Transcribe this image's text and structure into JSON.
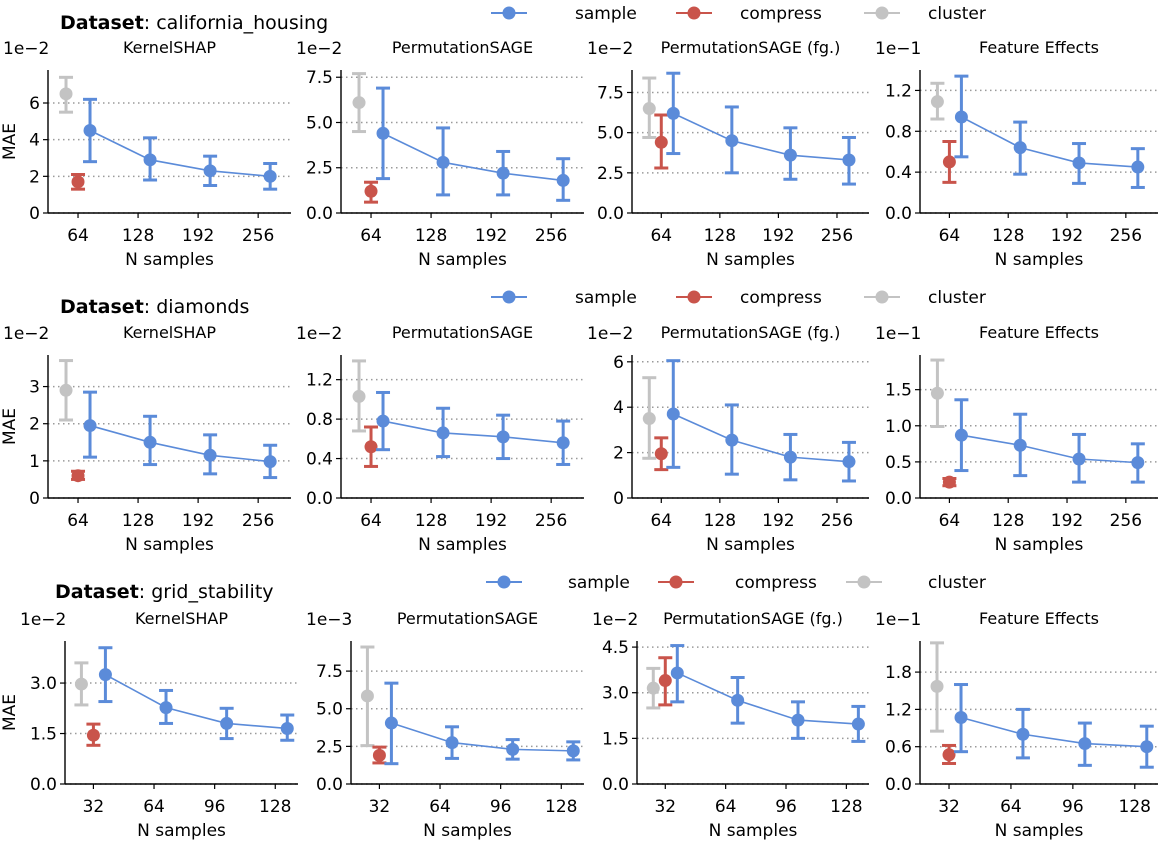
{
  "legend": [
    {
      "name": "sample",
      "color": "#5b8bd9"
    },
    {
      "name": "compress",
      "color": "#c9544b"
    },
    {
      "name": "cluster",
      "color": "#c3c3c3"
    }
  ],
  "dataset_label": "Dataset",
  "datasets": [
    "california_housing",
    "diamonds",
    "grid_stability"
  ],
  "x_label": "N samples",
  "y_label": "MAE",
  "chart_data": [
    {
      "type": "line",
      "dataset": "california_housing",
      "title": "KernelSHAP",
      "multiplier": "1e−2",
      "xlim": [
        32,
        291
      ],
      "ylim": [
        0,
        7.8
      ],
      "xticks": [
        64,
        128,
        192,
        256
      ],
      "yticks": [
        0,
        2,
        4,
        6
      ],
      "ytick_labels": [
        "0",
        "2",
        "4",
        "6"
      ],
      "grid": true,
      "sample": {
        "x": [
          64,
          128,
          192,
          256
        ],
        "y": [
          4.5,
          2.9,
          2.3,
          2.0
        ],
        "lo": [
          2.8,
          1.8,
          1.5,
          1.3
        ],
        "hi": [
          6.2,
          4.1,
          3.1,
          2.7
        ]
      },
      "compress": {
        "x": [
          64
        ],
        "y": [
          1.7
        ],
        "lo": [
          1.3
        ],
        "hi": [
          2.1
        ]
      },
      "cluster": {
        "x": [
          64
        ],
        "y": [
          6.5
        ],
        "lo": [
          5.5
        ],
        "hi": [
          7.4
        ]
      }
    },
    {
      "type": "line",
      "dataset": "california_housing",
      "title": "PermutationSAGE",
      "multiplier": "1e−2",
      "xlim": [
        32,
        291
      ],
      "ylim": [
        0,
        7.9
      ],
      "xticks": [
        64,
        128,
        192,
        256
      ],
      "yticks": [
        0,
        2.5,
        5,
        7.5
      ],
      "ytick_labels": [
        "0.0",
        "2.5",
        "5.0",
        "7.5"
      ],
      "grid": true,
      "sample": {
        "x": [
          64,
          128,
          192,
          256
        ],
        "y": [
          4.4,
          2.8,
          2.2,
          1.8
        ],
        "lo": [
          1.9,
          1.0,
          1.0,
          0.7
        ],
        "hi": [
          6.9,
          4.7,
          3.4,
          3.0
        ]
      },
      "compress": {
        "x": [
          64
        ],
        "y": [
          1.2
        ],
        "lo": [
          0.6
        ],
        "hi": [
          1.7
        ]
      },
      "cluster": {
        "x": [
          64
        ],
        "y": [
          6.1
        ],
        "lo": [
          4.5
        ],
        "hi": [
          7.7
        ]
      }
    },
    {
      "type": "line",
      "dataset": "california_housing",
      "title": "PermutationSAGE (fg.)",
      "multiplier": "1e−2",
      "xlim": [
        32,
        291
      ],
      "ylim": [
        0,
        8.9
      ],
      "xticks": [
        64,
        128,
        192,
        256
      ],
      "yticks": [
        0,
        2.5,
        5,
        7.5
      ],
      "ytick_labels": [
        "0.0",
        "2.5",
        "5.0",
        "7.5"
      ],
      "grid": true,
      "sample": {
        "x": [
          64,
          128,
          192,
          256
        ],
        "y": [
          6.2,
          4.5,
          3.6,
          3.3
        ],
        "lo": [
          3.7,
          2.5,
          2.1,
          1.8
        ],
        "hi": [
          8.7,
          6.6,
          5.3,
          4.7
        ]
      },
      "compress": {
        "x": [
          64
        ],
        "y": [
          4.4
        ],
        "lo": [
          2.8
        ],
        "hi": [
          6.1
        ]
      },
      "cluster": {
        "x": [
          64
        ],
        "y": [
          6.5
        ],
        "lo": [
          4.7
        ],
        "hi": [
          8.4
        ]
      }
    },
    {
      "type": "line",
      "dataset": "california_housing",
      "title": "Feature Effects",
      "multiplier": "1e−1",
      "xlim": [
        32,
        291
      ],
      "ylim": [
        0,
        1.4
      ],
      "xticks": [
        64,
        128,
        192,
        256
      ],
      "yticks": [
        0,
        0.4,
        0.8,
        1.2
      ],
      "ytick_labels": [
        "0.0",
        "0.4",
        "0.8",
        "1.2"
      ],
      "grid": true,
      "sample": {
        "x": [
          64,
          128,
          192,
          256
        ],
        "y": [
          0.94,
          0.64,
          0.49,
          0.45
        ],
        "lo": [
          0.55,
          0.38,
          0.29,
          0.25
        ],
        "hi": [
          1.34,
          0.89,
          0.68,
          0.63
        ]
      },
      "compress": {
        "x": [
          64
        ],
        "y": [
          0.5
        ],
        "lo": [
          0.3
        ],
        "hi": [
          0.7
        ]
      },
      "cluster": {
        "x": [
          64
        ],
        "y": [
          1.09
        ],
        "lo": [
          0.92
        ],
        "hi": [
          1.27
        ]
      }
    },
    {
      "type": "line",
      "dataset": "diamonds",
      "title": "KernelSHAP",
      "multiplier": "1e−2",
      "xlim": [
        32,
        291
      ],
      "ylim": [
        0,
        3.85
      ],
      "xticks": [
        64,
        128,
        192,
        256
      ],
      "yticks": [
        0,
        1,
        2,
        3
      ],
      "ytick_labels": [
        "0",
        "1",
        "2",
        "3"
      ],
      "grid": true,
      "sample": {
        "x": [
          64,
          128,
          192,
          256
        ],
        "y": [
          1.95,
          1.5,
          1.15,
          0.98
        ],
        "lo": [
          1.1,
          0.9,
          0.65,
          0.55
        ],
        "hi": [
          2.85,
          2.2,
          1.7,
          1.42
        ]
      },
      "compress": {
        "x": [
          64
        ],
        "y": [
          0.6
        ],
        "lo": [
          0.5
        ],
        "hi": [
          0.72
        ]
      },
      "cluster": {
        "x": [
          64
        ],
        "y": [
          2.9
        ],
        "lo": [
          2.1
        ],
        "hi": [
          3.7
        ]
      }
    },
    {
      "type": "line",
      "dataset": "diamonds",
      "title": "PermutationSAGE",
      "multiplier": "1e−2",
      "xlim": [
        32,
        291
      ],
      "ylim": [
        0,
        1.45
      ],
      "xticks": [
        64,
        128,
        192,
        256
      ],
      "yticks": [
        0,
        0.4,
        0.8,
        1.2
      ],
      "ytick_labels": [
        "0.0",
        "0.4",
        "0.8",
        "1.2"
      ],
      "grid": true,
      "sample": {
        "x": [
          64,
          128,
          192,
          256
        ],
        "y": [
          0.78,
          0.66,
          0.62,
          0.56
        ],
        "lo": [
          0.49,
          0.42,
          0.4,
          0.34
        ],
        "hi": [
          1.07,
          0.91,
          0.84,
          0.78
        ]
      },
      "compress": {
        "x": [
          64
        ],
        "y": [
          0.52
        ],
        "lo": [
          0.32
        ],
        "hi": [
          0.72
        ]
      },
      "cluster": {
        "x": [
          64
        ],
        "y": [
          1.03
        ],
        "lo": [
          0.68
        ],
        "hi": [
          1.39
        ]
      }
    },
    {
      "type": "line",
      "dataset": "diamonds",
      "title": "PermutationSAGE (fg.)",
      "multiplier": "1e−2",
      "xlim": [
        32,
        291
      ],
      "ylim": [
        0,
        6.3
      ],
      "xticks": [
        64,
        128,
        192,
        256
      ],
      "yticks": [
        0,
        2,
        4,
        6
      ],
      "ytick_labels": [
        "0",
        "2",
        "4",
        "6"
      ],
      "grid": true,
      "sample": {
        "x": [
          64,
          128,
          192,
          256
        ],
        "y": [
          3.7,
          2.55,
          1.8,
          1.6
        ],
        "lo": [
          1.35,
          1.05,
          0.8,
          0.75
        ],
        "hi": [
          6.05,
          4.1,
          2.8,
          2.45
        ]
      },
      "compress": {
        "x": [
          64
        ],
        "y": [
          1.95
        ],
        "lo": [
          1.25
        ],
        "hi": [
          2.65
        ]
      },
      "cluster": {
        "x": [
          64
        ],
        "y": [
          3.5
        ],
        "lo": [
          1.75
        ],
        "hi": [
          5.3
        ]
      }
    },
    {
      "type": "line",
      "dataset": "diamonds",
      "title": "Feature Effects",
      "multiplier": "1e−1",
      "xlim": [
        32,
        291
      ],
      "ylim": [
        0,
        1.98
      ],
      "xticks": [
        64,
        128,
        192,
        256
      ],
      "yticks": [
        0,
        0.5,
        1.0,
        1.5
      ],
      "ytick_labels": [
        "0.0",
        "0.5",
        "1.0",
        "1.5"
      ],
      "grid": true,
      "sample": {
        "x": [
          64,
          128,
          192,
          256
        ],
        "y": [
          0.87,
          0.73,
          0.54,
          0.49
        ],
        "lo": [
          0.38,
          0.31,
          0.22,
          0.22
        ],
        "hi": [
          1.36,
          1.16,
          0.88,
          0.75
        ]
      },
      "compress": {
        "x": [
          64
        ],
        "y": [
          0.22
        ],
        "lo": [
          0.17
        ],
        "hi": [
          0.27
        ]
      },
      "cluster": {
        "x": [
          64
        ],
        "y": [
          1.45
        ],
        "lo": [
          0.99
        ],
        "hi": [
          1.91
        ]
      }
    },
    {
      "type": "line",
      "dataset": "grid_stability",
      "title": "KernelSHAP",
      "multiplier": "1e−2",
      "xlim": [
        17,
        140
      ],
      "ylim": [
        0,
        4.25
      ],
      "xticks": [
        32,
        64,
        96,
        128
      ],
      "yticks": [
        0,
        1.5,
        3.0
      ],
      "ytick_labels": [
        "0.0",
        "1.5",
        "3.0"
      ],
      "grid": true,
      "sample": {
        "x": [
          32,
          64,
          96,
          128
        ],
        "y": [
          3.25,
          2.27,
          1.8,
          1.65
        ],
        "lo": [
          2.45,
          1.8,
          1.35,
          1.3
        ],
        "hi": [
          4.05,
          2.78,
          2.25,
          2.05
        ]
      },
      "compress": {
        "x": [
          32
        ],
        "y": [
          1.45
        ],
        "lo": [
          1.15
        ],
        "hi": [
          1.78
        ]
      },
      "cluster": {
        "x": [
          32
        ],
        "y": [
          2.97
        ],
        "lo": [
          2.35
        ],
        "hi": [
          3.6
        ]
      }
    },
    {
      "type": "line",
      "dataset": "grid_stability",
      "title": "PermutationSAGE",
      "multiplier": "1e−3",
      "xlim": [
        17,
        140
      ],
      "ylim": [
        0,
        9.5
      ],
      "xticks": [
        32,
        64,
        96,
        128
      ],
      "yticks": [
        0,
        2.5,
        5,
        7.5
      ],
      "ytick_labels": [
        "0.0",
        "2.5",
        "5.0",
        "7.5"
      ],
      "grid": true,
      "sample": {
        "x": [
          32,
          64,
          96,
          128
        ],
        "y": [
          4.05,
          2.75,
          2.3,
          2.2
        ],
        "lo": [
          1.35,
          1.7,
          1.65,
          1.6
        ],
        "hi": [
          6.7,
          3.8,
          2.95,
          2.8
        ]
      },
      "compress": {
        "x": [
          32
        ],
        "y": [
          1.9
        ],
        "lo": [
          1.4
        ],
        "hi": [
          2.45
        ]
      },
      "cluster": {
        "x": [
          32
        ],
        "y": [
          5.85
        ],
        "lo": [
          2.55
        ],
        "hi": [
          9.1
        ]
      }
    },
    {
      "type": "line",
      "dataset": "grid_stability",
      "title": "PermutationSAGE (fg.)",
      "multiplier": "1e−2",
      "xlim": [
        17,
        140
      ],
      "ylim": [
        0,
        4.7
      ],
      "xticks": [
        32,
        64,
        96,
        128
      ],
      "yticks": [
        0,
        1.5,
        3.0,
        4.5
      ],
      "ytick_labels": [
        "0.0",
        "1.5",
        "3.0",
        "4.5"
      ],
      "grid": true,
      "sample": {
        "x": [
          32,
          64,
          96,
          128
        ],
        "y": [
          3.65,
          2.75,
          2.1,
          1.97
        ],
        "lo": [
          2.7,
          2.0,
          1.5,
          1.4
        ],
        "hi": [
          4.55,
          3.5,
          2.7,
          2.55
        ]
      },
      "compress": {
        "x": [
          32
        ],
        "y": [
          3.4
        ],
        "lo": [
          2.6
        ],
        "hi": [
          4.15
        ]
      },
      "cluster": {
        "x": [
          32
        ],
        "y": [
          3.15
        ],
        "lo": [
          2.5
        ],
        "hi": [
          3.8
        ]
      }
    },
    {
      "type": "line",
      "dataset": "grid_stability",
      "title": "Feature Effects",
      "multiplier": "1e−1",
      "xlim": [
        17,
        140
      ],
      "ylim": [
        0,
        2.3
      ],
      "xticks": [
        32,
        64,
        96,
        128
      ],
      "yticks": [
        0,
        0.6,
        1.2,
        1.8
      ],
      "ytick_labels": [
        "0.0",
        "0.6",
        "1.2",
        "1.8"
      ],
      "grid": true,
      "sample": {
        "x": [
          32,
          64,
          96,
          128
        ],
        "y": [
          1.07,
          0.8,
          0.65,
          0.6
        ],
        "lo": [
          0.52,
          0.42,
          0.3,
          0.27
        ],
        "hi": [
          1.6,
          1.2,
          0.98,
          0.93
        ]
      },
      "compress": {
        "x": [
          32
        ],
        "y": [
          0.47
        ],
        "lo": [
          0.33
        ],
        "hi": [
          0.62
        ]
      },
      "cluster": {
        "x": [
          32
        ],
        "y": [
          1.57
        ],
        "lo": [
          0.85
        ],
        "hi": [
          2.27
        ]
      }
    }
  ]
}
